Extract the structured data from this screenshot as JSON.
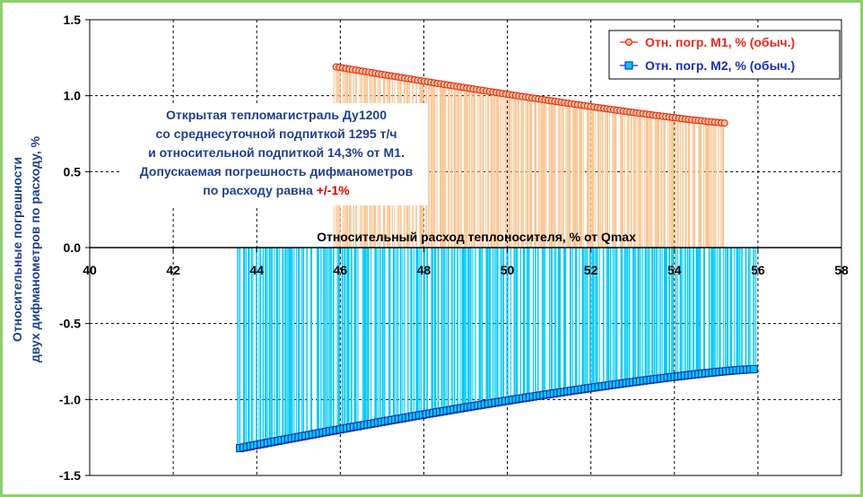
{
  "chart_data": {
    "type": "scatter",
    "xlabel": "Относительный расход теплоносителя, % от Qmax",
    "ylabel_line1": "Относительные погрешности",
    "ylabel_line2": "двух дифманометров по расходу, %",
    "xlim": [
      40,
      58
    ],
    "ylim": [
      -1.5,
      1.5
    ],
    "x_ticks": [
      "40",
      "42",
      "44",
      "46",
      "48",
      "50",
      "52",
      "54",
      "56",
      "58"
    ],
    "y_ticks": [
      "1.5",
      "1.0",
      "0.5",
      "0.0",
      "-0.5",
      "-1.0",
      "-1.5"
    ],
    "grid": true,
    "legend_position": "top-right",
    "annotation": {
      "line1": "Открытая тепломагистраль Ду1200",
      "line2": "со среднесуточной подпиткой 1295 т/ч",
      "line3": "и относительной подпиткой 14,3% от М1.",
      "line4": "Допускаемая погрешность дифманометров",
      "line5": "по расходу равна ",
      "line5_highlight": "+/-1%"
    },
    "series": [
      {
        "name": "Отн. погр. М1, % (обыч.)",
        "color": "#e32b1e",
        "drop_color": "#f9c491",
        "marker": "circle",
        "x_range": [
          45.9,
          55.2
        ],
        "y_range": [
          1.19,
          0.82
        ],
        "count": 120
      },
      {
        "name": "Отн. погр. М2, % (обыч.)",
        "color": "#1a2fb5",
        "drop_color": "#00c8f5",
        "marker": "square",
        "x_range": [
          43.6,
          55.9
        ],
        "y_range": [
          -1.32,
          -0.8
        ],
        "count": 150
      }
    ]
  }
}
